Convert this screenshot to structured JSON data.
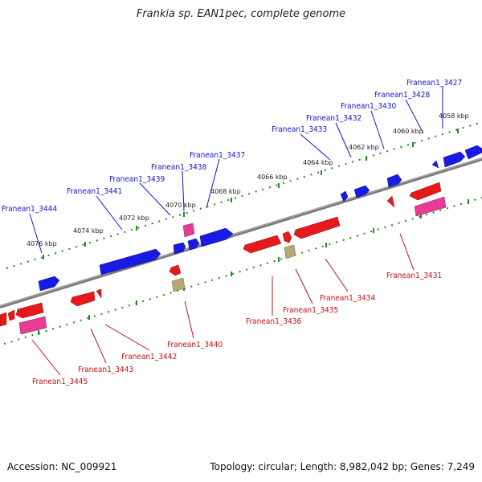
{
  "title": "Frankia sp. EAN1pec, complete genome",
  "footer": {
    "accession": "Accession: NC_009921",
    "summary": "Topology: circular; Length: 8,982,042 bp; Genes: 7,249"
  },
  "colors": {
    "forward_gene": "#1a1ae6",
    "reverse_gene": "#e61a1a",
    "rna_pink": "#e63c96",
    "misc_olive": "#b4aa6e",
    "backbone": "#8c8c8c",
    "ruler_dots": "#1e8c1e",
    "top_label": "#1515c8",
    "bottom_label": "#c01010"
  },
  "kbp_labels": [
    "4058 kbp",
    "4060 kbp",
    "4062 kbp",
    "4064 kbp",
    "4066 kbp",
    "4068 kbp",
    "4070 kbp",
    "4072 kbp",
    "4074 kbp",
    "4076 kbp"
  ],
  "top_labels": [
    "Franean1_3427",
    "Franean1_3428",
    "Franean1_3430",
    "Franean1_3432",
    "Franean1_3433",
    "Franean1_3437",
    "Franean1_3438",
    "Franean1_3439",
    "Franean1_3441",
    "Franean1_3444"
  ],
  "bottom_labels": [
    "Franean1_3431",
    "Franean1_3434",
    "Franean1_3435",
    "Franean1_3436",
    "Franean1_3440",
    "Franean1_3442",
    "Franean1_3443",
    "Franean1_3445"
  ]
}
